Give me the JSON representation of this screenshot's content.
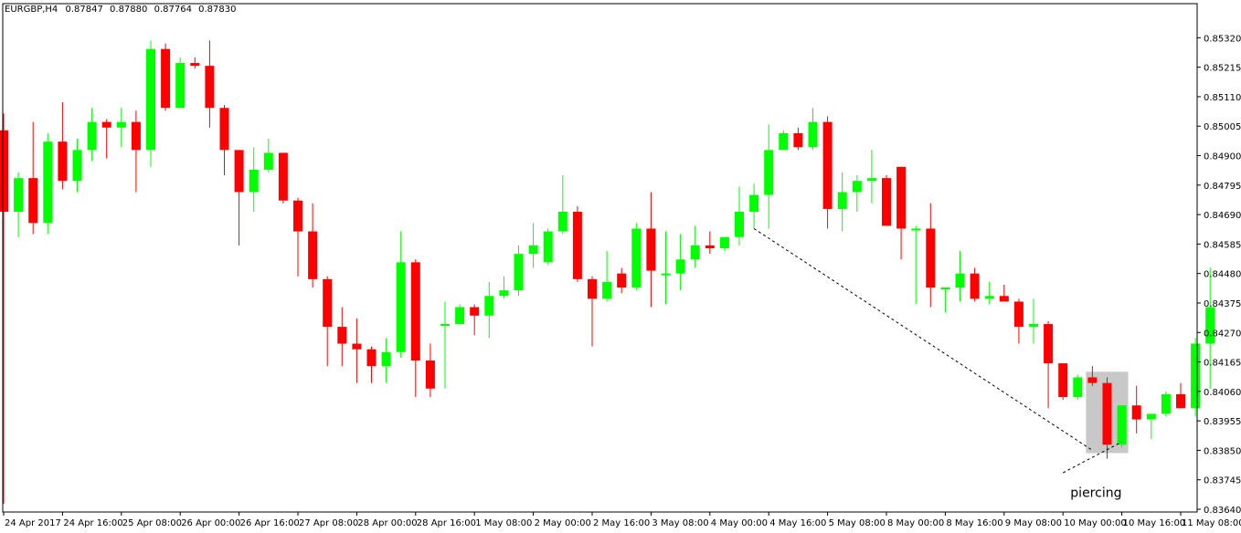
{
  "header": {
    "symbol": "EURGBP,H4",
    "open": "0.87847",
    "high": "0.87880",
    "low": "0.87764",
    "close": "0.87830"
  },
  "colors": {
    "bull": "#00ff00",
    "bear": "#ff0000",
    "axis": "#000000",
    "highlight": "#c8c8c8",
    "background": "#ffffff"
  },
  "chart_data": {
    "type": "candlestick",
    "title": "",
    "xlabel": "",
    "ylabel": "",
    "ylim": [
      0.8364,
      0.8537
    ],
    "y_tick_labels": [
      "0.85320",
      "0.85215",
      "0.85110",
      "0.85005",
      "0.84900",
      "0.84795",
      "0.84690",
      "0.84585",
      "0.84480",
      "0.84375",
      "0.84270",
      "0.84165",
      "0.84060",
      "0.83955",
      "0.83850",
      "0.83745",
      "0.83640"
    ],
    "x_tick_labels": [
      {
        "label": "24 Apr 2017",
        "bar": 0
      },
      {
        "label": "24 Apr 16:00",
        "bar": 4
      },
      {
        "label": "25 Apr 08:00",
        "bar": 8
      },
      {
        "label": "26 Apr 00:00",
        "bar": 12
      },
      {
        "label": "26 Apr 16:00",
        "bar": 16
      },
      {
        "label": "27 Apr 08:00",
        "bar": 20
      },
      {
        "label": "28 Apr 00:00",
        "bar": 24
      },
      {
        "label": "28 Apr 16:00",
        "bar": 28
      },
      {
        "label": "1 May 08:00",
        "bar": 32
      },
      {
        "label": "2 May 00:00",
        "bar": 36
      },
      {
        "label": "2 May 16:00",
        "bar": 40
      },
      {
        "label": "3 May 08:00",
        "bar": 44
      },
      {
        "label": "4 May 00:00",
        "bar": 48
      },
      {
        "label": "4 May 16:00",
        "bar": 52
      },
      {
        "label": "5 May 08:00",
        "bar": 56
      },
      {
        "label": "8 May 00:00",
        "bar": 60
      },
      {
        "label": "8 May 16:00",
        "bar": 64
      },
      {
        "label": "9 May 08:00",
        "bar": 68
      },
      {
        "label": "10 May 00:00",
        "bar": 72
      },
      {
        "label": "10 May 16:00",
        "bar": 76
      },
      {
        "label": "11 May 08:00",
        "bar": 80
      }
    ],
    "candles": [
      {
        "o": 0.8499,
        "h": 0.8505,
        "l": 0.8366,
        "c": 0.847
      },
      {
        "o": 0.847,
        "h": 0.8484,
        "l": 0.8461,
        "c": 0.8482
      },
      {
        "o": 0.8482,
        "h": 0.8502,
        "l": 0.8462,
        "c": 0.8466
      },
      {
        "o": 0.8466,
        "h": 0.8498,
        "l": 0.8462,
        "c": 0.8495
      },
      {
        "o": 0.8495,
        "h": 0.8509,
        "l": 0.8478,
        "c": 0.8481
      },
      {
        "o": 0.8481,
        "h": 0.8496,
        "l": 0.8477,
        "c": 0.8492
      },
      {
        "o": 0.8492,
        "h": 0.8507,
        "l": 0.8488,
        "c": 0.8502
      },
      {
        "o": 0.8502,
        "h": 0.8503,
        "l": 0.8489,
        "c": 0.85
      },
      {
        "o": 0.85,
        "h": 0.8507,
        "l": 0.8493,
        "c": 0.8502
      },
      {
        "o": 0.8502,
        "h": 0.8506,
        "l": 0.8477,
        "c": 0.8492
      },
      {
        "o": 0.8492,
        "h": 0.8531,
        "l": 0.8486,
        "c": 0.8528
      },
      {
        "o": 0.8528,
        "h": 0.853,
        "l": 0.8506,
        "c": 0.8507
      },
      {
        "o": 0.8507,
        "h": 0.8525,
        "l": 0.8507,
        "c": 0.8523
      },
      {
        "o": 0.8523,
        "h": 0.8525,
        "l": 0.8521,
        "c": 0.8522
      },
      {
        "o": 0.8522,
        "h": 0.8531,
        "l": 0.85,
        "c": 0.8507
      },
      {
        "o": 0.8507,
        "h": 0.8508,
        "l": 0.8483,
        "c": 0.8492
      },
      {
        "o": 0.8492,
        "h": 0.8492,
        "l": 0.8458,
        "c": 0.8477
      },
      {
        "o": 0.8477,
        "h": 0.8493,
        "l": 0.847,
        "c": 0.8485
      },
      {
        "o": 0.8485,
        "h": 0.8496,
        "l": 0.8484,
        "c": 0.8491
      },
      {
        "o": 0.8491,
        "h": 0.8491,
        "l": 0.8473,
        "c": 0.8474
      },
      {
        "o": 0.8474,
        "h": 0.8475,
        "l": 0.8447,
        "c": 0.8463
      },
      {
        "o": 0.8463,
        "h": 0.8473,
        "l": 0.8443,
        "c": 0.8446
      },
      {
        "o": 0.8446,
        "h": 0.8447,
        "l": 0.8415,
        "c": 0.8429
      },
      {
        "o": 0.8429,
        "h": 0.8436,
        "l": 0.8415,
        "c": 0.8423
      },
      {
        "o": 0.8423,
        "h": 0.8432,
        "l": 0.8409,
        "c": 0.8421
      },
      {
        "o": 0.8421,
        "h": 0.8422,
        "l": 0.8409,
        "c": 0.8415
      },
      {
        "o": 0.8415,
        "h": 0.8425,
        "l": 0.8409,
        "c": 0.842
      },
      {
        "o": 0.842,
        "h": 0.8463,
        "l": 0.8418,
        "c": 0.8452
      },
      {
        "o": 0.8452,
        "h": 0.8453,
        "l": 0.8404,
        "c": 0.8417
      },
      {
        "o": 0.8417,
        "h": 0.8423,
        "l": 0.8404,
        "c": 0.8407
      },
      {
        "o": 0.843,
        "h": 0.8438,
        "l": 0.8407,
        "c": 0.843
      },
      {
        "o": 0.843,
        "h": 0.8437,
        "l": 0.843,
        "c": 0.8436
      },
      {
        "o": 0.8436,
        "h": 0.8437,
        "l": 0.8426,
        "c": 0.8433
      },
      {
        "o": 0.8433,
        "h": 0.8445,
        "l": 0.8425,
        "c": 0.844
      },
      {
        "o": 0.844,
        "h": 0.8447,
        "l": 0.8439,
        "c": 0.8442
      },
      {
        "o": 0.8442,
        "h": 0.8458,
        "l": 0.844,
        "c": 0.8455
      },
      {
        "o": 0.8455,
        "h": 0.8466,
        "l": 0.845,
        "c": 0.8458
      },
      {
        "o": 0.8452,
        "h": 0.8464,
        "l": 0.8451,
        "c": 0.8463
      },
      {
        "o": 0.8463,
        "h": 0.8483,
        "l": 0.8462,
        "c": 0.847
      },
      {
        "o": 0.847,
        "h": 0.8472,
        "l": 0.8445,
        "c": 0.8446
      },
      {
        "o": 0.8446,
        "h": 0.8447,
        "l": 0.8422,
        "c": 0.8439
      },
      {
        "o": 0.8439,
        "h": 0.8456,
        "l": 0.8438,
        "c": 0.8445
      },
      {
        "o": 0.8448,
        "h": 0.845,
        "l": 0.8441,
        "c": 0.8443
      },
      {
        "o": 0.8443,
        "h": 0.8466,
        "l": 0.8442,
        "c": 0.8464
      },
      {
        "o": 0.8464,
        "h": 0.8477,
        "l": 0.8436,
        "c": 0.8449
      },
      {
        "o": 0.8448,
        "h": 0.8463,
        "l": 0.8437,
        "c": 0.8448
      },
      {
        "o": 0.8448,
        "h": 0.8462,
        "l": 0.8442,
        "c": 0.8453
      },
      {
        "o": 0.8453,
        "h": 0.8465,
        "l": 0.845,
        "c": 0.8458
      },
      {
        "o": 0.8458,
        "h": 0.8463,
        "l": 0.8455,
        "c": 0.8457
      },
      {
        "o": 0.8457,
        "h": 0.8461,
        "l": 0.8456,
        "c": 0.8461
      },
      {
        "o": 0.8461,
        "h": 0.8479,
        "l": 0.8458,
        "c": 0.847
      },
      {
        "o": 0.847,
        "h": 0.848,
        "l": 0.8464,
        "c": 0.8476
      },
      {
        "o": 0.8476,
        "h": 0.8501,
        "l": 0.8464,
        "c": 0.8492
      },
      {
        "o": 0.8492,
        "h": 0.8499,
        "l": 0.8493,
        "c": 0.8498
      },
      {
        "o": 0.8498,
        "h": 0.85,
        "l": 0.8492,
        "c": 0.8493
      },
      {
        "o": 0.8493,
        "h": 0.8507,
        "l": 0.8492,
        "c": 0.8502
      },
      {
        "o": 0.8502,
        "h": 0.8504,
        "l": 0.8464,
        "c": 0.8471
      },
      {
        "o": 0.8471,
        "h": 0.8484,
        "l": 0.8463,
        "c": 0.8477
      },
      {
        "o": 0.8477,
        "h": 0.8483,
        "l": 0.847,
        "c": 0.8481
      },
      {
        "o": 0.8481,
        "h": 0.8492,
        "l": 0.8473,
        "c": 0.8482
      },
      {
        "o": 0.8482,
        "h": 0.8483,
        "l": 0.8465,
        "c": 0.8465
      },
      {
        "o": 0.8486,
        "h": 0.8486,
        "l": 0.8453,
        "c": 0.8464
      },
      {
        "o": 0.8464,
        "h": 0.8465,
        "l": 0.8437,
        "c": 0.8464
      },
      {
        "o": 0.8464,
        "h": 0.8473,
        "l": 0.8436,
        "c": 0.8443
      },
      {
        "o": 0.8443,
        "h": 0.8443,
        "l": 0.8434,
        "c": 0.8443
      },
      {
        "o": 0.8443,
        "h": 0.8456,
        "l": 0.8438,
        "c": 0.8448
      },
      {
        "o": 0.8448,
        "h": 0.845,
        "l": 0.8438,
        "c": 0.8439
      },
      {
        "o": 0.8439,
        "h": 0.8445,
        "l": 0.8437,
        "c": 0.844
      },
      {
        "o": 0.844,
        "h": 0.8444,
        "l": 0.8438,
        "c": 0.8438
      },
      {
        "o": 0.8438,
        "h": 0.8439,
        "l": 0.8423,
        "c": 0.8429
      },
      {
        "o": 0.8429,
        "h": 0.8439,
        "l": 0.8423,
        "c": 0.843
      },
      {
        "o": 0.843,
        "h": 0.8431,
        "l": 0.84,
        "c": 0.8416
      },
      {
        "o": 0.8416,
        "h": 0.8415,
        "l": 0.8403,
        "c": 0.8404
      },
      {
        "o": 0.8404,
        "h": 0.8412,
        "l": 0.8403,
        "c": 0.8411
      },
      {
        "o": 0.8411,
        "h": 0.8415,
        "l": 0.8408,
        "c": 0.8409
      },
      {
        "o": 0.8409,
        "h": 0.8411,
        "l": 0.8382,
        "c": 0.8387
      },
      {
        "o": 0.8387,
        "h": 0.8401,
        "l": 0.8386,
        "c": 0.8401
      },
      {
        "o": 0.8401,
        "h": 0.8408,
        "l": 0.8391,
        "c": 0.8396
      },
      {
        "o": 0.8396,
        "h": 0.8397,
        "l": 0.8389,
        "c": 0.8398
      },
      {
        "o": 0.8398,
        "h": 0.8406,
        "l": 0.8397,
        "c": 0.8405
      },
      {
        "o": 0.8405,
        "h": 0.8409,
        "l": 0.84,
        "c": 0.84
      },
      {
        "o": 0.84,
        "h": 0.8425,
        "l": 0.8397,
        "c": 0.8423
      },
      {
        "o": 0.8423,
        "h": 0.845,
        "l": 0.8407,
        "c": 0.8436
      }
    ],
    "annotations": [
      {
        "type": "trendline",
        "from_bar": 51,
        "from_price": 0.8464,
        "to_bar": 74,
        "to_price": 0.8385,
        "style": "dashed"
      },
      {
        "type": "trendline",
        "from_bar": 72,
        "from_price": 0.8377,
        "to_bar": 76,
        "to_price": 0.8388,
        "style": "dashed"
      },
      {
        "type": "highlight",
        "from_bar": 74,
        "to_bar": 76,
        "from_price": 0.8384,
        "to_price": 0.8413
      },
      {
        "type": "text",
        "text": "piercing",
        "bar": 73,
        "price": 0.837
      }
    ]
  }
}
